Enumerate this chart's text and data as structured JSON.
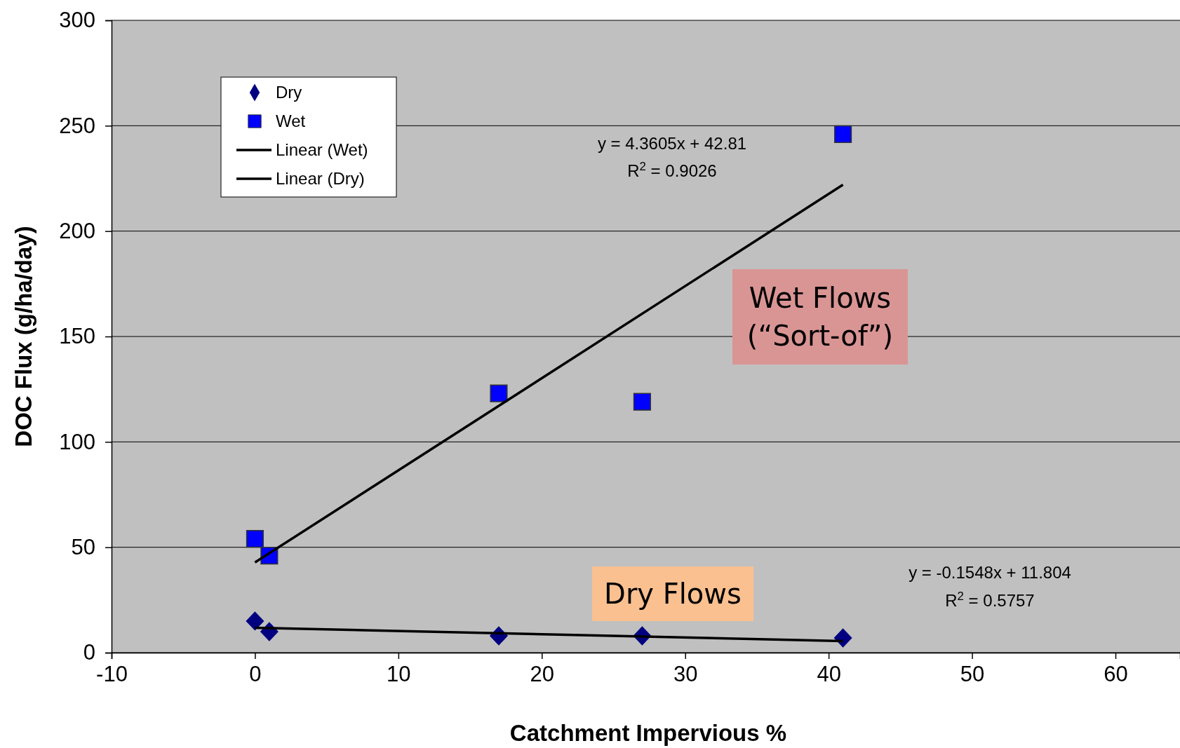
{
  "chart_data": {
    "type": "scatter",
    "xlabel": "Catchment Impervious %",
    "ylabel": "DOC Flux (g/ha/day)",
    "xlim": [
      -10,
      64.5
    ],
    "xticks": [
      -10,
      0,
      10,
      20,
      30,
      40,
      50,
      60
    ],
    "ylim": [
      0,
      300
    ],
    "yticks": [
      0,
      50,
      100,
      150,
      200,
      250,
      300
    ],
    "grid": "y",
    "legend": "top left",
    "series": [
      {
        "name": "Dry",
        "marker": "diamond",
        "color": "#000080",
        "x": [
          0,
          1,
          17,
          27,
          41
        ],
        "values": [
          15,
          10,
          8,
          8,
          7
        ]
      },
      {
        "name": "Wet",
        "marker": "square",
        "color": "#0000ff",
        "x": [
          0,
          1,
          17,
          27,
          41
        ],
        "values": [
          54,
          46,
          123,
          119,
          246
        ]
      },
      {
        "name": "Linear (Wet)",
        "type": "line",
        "marker": "none",
        "line_style": "solid",
        "color": "#000000",
        "x": [
          0,
          41
        ],
        "values": [
          42.8,
          222
        ]
      },
      {
        "name": "Linear (Dry)",
        "type": "line",
        "marker": "none",
        "line_style": "solid",
        "color": "#000000",
        "x": [
          0,
          41
        ],
        "values": [
          11.8,
          5.5
        ]
      }
    ],
    "annotations": [
      "y = 4.3605x + 42.81",
      "R$^{2}$ = 0.9026",
      "y = -0.1548x + 11.804",
      "R$^{2}$ = 0.5757",
      "Wet Flows\n(“Sort-of”)",
      "Dry Flows"
    ]
  }
}
